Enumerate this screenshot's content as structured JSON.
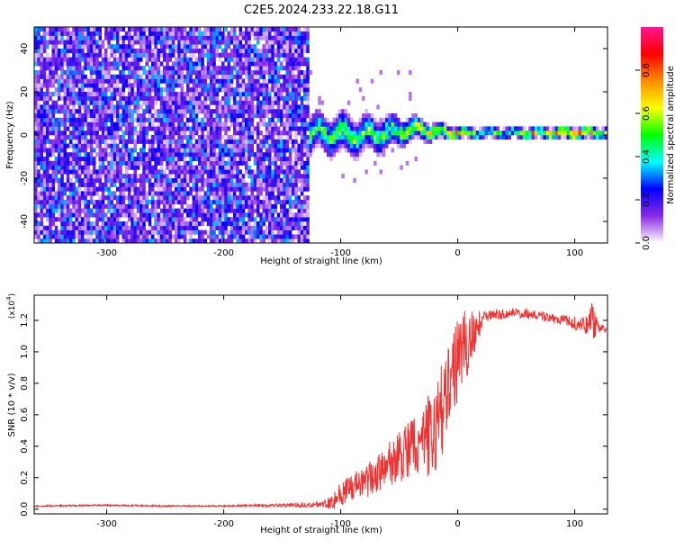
{
  "title": "C2E5.2024.233.22.18.G11",
  "chart_data": [
    {
      "type": "heatmap",
      "title": "C2E5.2024.233.22.18.G11",
      "xlabel": "Height of straight line (km)",
      "ylabel": "Frequency (Hz)",
      "xlim": [
        -362,
        128
      ],
      "ylim": [
        -50,
        50
      ],
      "xticks": [
        -300,
        -200,
        -100,
        0,
        100
      ],
      "yticks": [
        -40,
        -20,
        0,
        20,
        40
      ],
      "grid": false,
      "noise_region_x": [
        -362,
        -128
      ],
      "signal_band": [
        {
          "x": -140,
          "center_hz": 0.5,
          "halfwidth_hz": 12,
          "peak": 0.45
        },
        {
          "x": -120,
          "center_hz": 1.0,
          "halfwidth_hz": 9,
          "peak": 0.55
        },
        {
          "x": -100,
          "center_hz": 0.0,
          "halfwidth_hz": 10,
          "peak": 0.55
        },
        {
          "x": -80,
          "center_hz": 0.0,
          "halfwidth_hz": 9,
          "peak": 0.55
        },
        {
          "x": -60,
          "center_hz": 1.0,
          "halfwidth_hz": 8,
          "peak": 0.6
        },
        {
          "x": -40,
          "center_hz": 3.0,
          "halfwidth_hz": 6,
          "peak": 0.65
        },
        {
          "x": -20,
          "center_hz": 1.5,
          "halfwidth_hz": 4,
          "peak": 0.8
        },
        {
          "x": 0,
          "center_hz": 1.0,
          "halfwidth_hz": 3,
          "peak": 0.85
        },
        {
          "x": 20,
          "center_hz": 1.0,
          "halfwidth_hz": 3,
          "peak": 0.5
        },
        {
          "x": 50,
          "center_hz": 1.0,
          "halfwidth_hz": 3,
          "peak": 0.6
        },
        {
          "x": 80,
          "center_hz": 1.0,
          "halfwidth_hz": 3,
          "peak": 0.9
        },
        {
          "x": 110,
          "center_hz": 1.0,
          "halfwidth_hz": 3,
          "peak": 0.9
        },
        {
          "x": 128,
          "center_hz": 1.0,
          "halfwidth_hz": 3,
          "peak": 0.6
        }
      ],
      "colorbar": {
        "label": "Normalized spectral amplitude",
        "range": [
          0,
          1
        ],
        "ticks": [
          "0.0",
          "0.2",
          "0.4",
          "0.6",
          "0.8"
        ],
        "colors": [
          "#ffffff",
          "#8a2be2",
          "#0000ff",
          "#00ffff",
          "#00ff00",
          "#ffff00",
          "#ff8c00",
          "#ff0000",
          "#ff1493"
        ]
      }
    },
    {
      "type": "line",
      "xlabel": "Height of straight line (km)",
      "ylabel": "SNR (10 * v/v)",
      "y_multiplier_label": "(x10",
      "y_multiplier_exp": "4",
      "y_multiplier_close": ")",
      "xlim": [
        -362,
        128
      ],
      "ylim": [
        -0.03,
        1.36
      ],
      "xticks": [
        -300,
        -200,
        -100,
        0,
        100
      ],
      "yticks": [
        "0.0",
        "0.2",
        "0.4",
        "0.6",
        "0.8",
        "1.0",
        "1.2"
      ],
      "grid": false,
      "series": [
        {
          "color": "#ee3333",
          "x": [
            -362,
            -300,
            -250,
            -200,
            -150,
            -115,
            -105,
            -100,
            -90,
            -80,
            -70,
            -60,
            -50,
            -40,
            -30,
            -20,
            -15,
            -10,
            -5,
            0,
            5,
            10,
            15,
            20,
            30,
            40,
            50,
            60,
            70,
            80,
            90,
            100,
            110,
            115,
            118,
            122,
            128
          ],
          "y": [
            0.02,
            0.025,
            0.02,
            0.02,
            0.025,
            0.03,
            0.06,
            0.1,
            0.13,
            0.17,
            0.22,
            0.28,
            0.33,
            0.38,
            0.43,
            0.5,
            0.6,
            0.72,
            0.85,
            0.95,
            1.02,
            1.08,
            1.1,
            1.2,
            1.24,
            1.24,
            1.25,
            1.24,
            1.23,
            1.21,
            1.2,
            1.18,
            1.17,
            1.22,
            1.15,
            1.15,
            1.14
          ],
          "band": [
            0,
            0,
            0,
            0,
            0.01,
            0.02,
            0.07,
            0.08,
            0.09,
            0.1,
            0.12,
            0.14,
            0.17,
            0.2,
            0.24,
            0.28,
            0.3,
            0.3,
            0.28,
            0.26,
            0.24,
            0.2,
            0.15,
            0.06,
            0.03,
            0.03,
            0.03,
            0.03,
            0.03,
            0.03,
            0.03,
            0.04,
            0.06,
            0.12,
            0.08,
            0.03,
            0.02
          ]
        }
      ]
    }
  ]
}
